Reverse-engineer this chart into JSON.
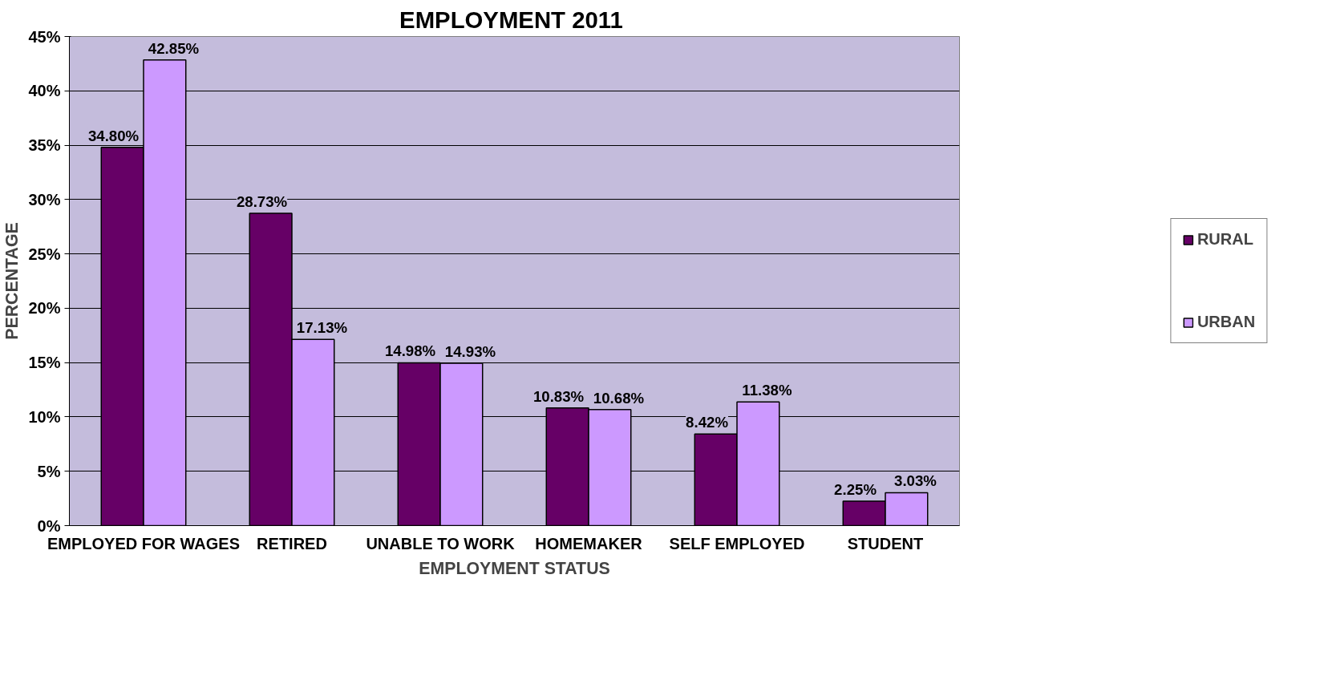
{
  "chart_data": {
    "type": "bar",
    "title": "EMPLOYMENT  2011",
    "xlabel": "EMPLOYMENT STATUS",
    "ylabel": "PERCENTAGE",
    "categories": [
      "EMPLOYED FOR WAGES",
      "RETIRED",
      "UNABLE TO WORK",
      "HOMEMAKER",
      "SELF EMPLOYED",
      "STUDENT"
    ],
    "series": [
      {
        "name": "RURAL",
        "color": "#660066",
        "values": [
          34.8,
          28.73,
          14.98,
          10.83,
          8.42,
          2.25
        ],
        "value_labels": [
          "34.80%",
          "28.73%",
          "14.98%",
          "10.83%",
          "8.42%",
          "2.25%"
        ]
      },
      {
        "name": "URBAN",
        "color": "#cc99ff",
        "values": [
          42.85,
          17.13,
          14.93,
          10.68,
          11.38,
          3.03
        ],
        "value_labels": [
          "42.85%",
          "17.13%",
          "14.93%",
          "10.68%",
          "11.38%",
          "3.03%"
        ]
      }
    ],
    "ylim": [
      0,
      45
    ],
    "yticks": [
      {
        "value": 0,
        "label": "0%"
      },
      {
        "value": 5,
        "label": "5%"
      },
      {
        "value": 10,
        "label": "10%"
      },
      {
        "value": 15,
        "label": "15%"
      },
      {
        "value": 20,
        "label": "20%"
      },
      {
        "value": 25,
        "label": "25%"
      },
      {
        "value": 30,
        "label": "30%"
      },
      {
        "value": 35,
        "label": "35%"
      },
      {
        "value": 40,
        "label": "40%"
      },
      {
        "value": 45,
        "label": "45%"
      }
    ],
    "grid": "y",
    "legend": "right"
  }
}
